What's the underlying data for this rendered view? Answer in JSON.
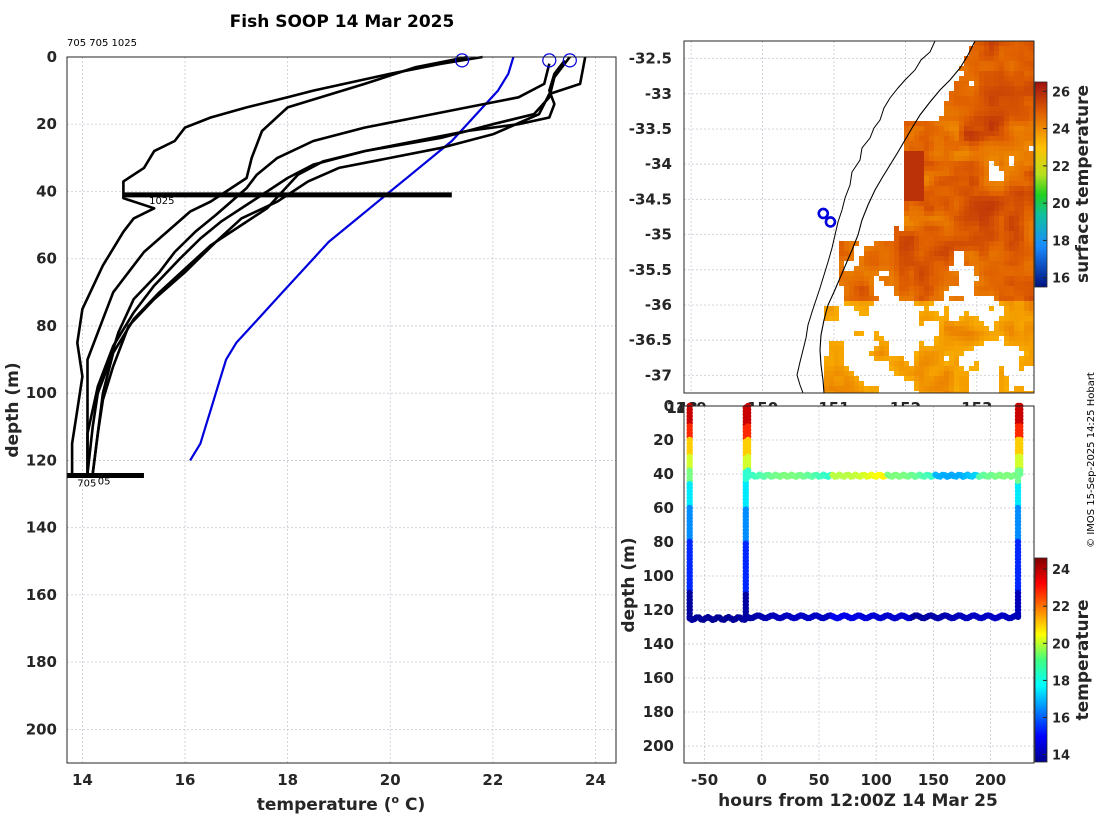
{
  "chart_data": [
    {
      "id": "profiles",
      "type": "line",
      "title": "Fish SOOP 14 Mar 2025",
      "annotation": "705 705 1025",
      "xlabel": "temperature (° C)",
      "xlabel_main": "temperature (",
      "xlabel_sup": "o",
      "xlabel_end": " C)",
      "ylabel": "depth (m)",
      "xlim": [
        13.7,
        24.4
      ],
      "ylim": [
        210,
        0
      ],
      "xticks": [
        14,
        16,
        18,
        20,
        22,
        24
      ],
      "yticks": [
        0,
        20,
        40,
        60,
        80,
        100,
        120,
        140,
        160,
        180,
        200
      ],
      "depth_labels": [
        {
          "text": "1025",
          "temp": 15.3,
          "depth": 42.5
        },
        {
          "text": "705",
          "temp": 13.9,
          "depth": 126.5
        },
        {
          "text": "05",
          "temp": 14.3,
          "depth": 126
        }
      ],
      "series": [
        {
          "name": "climatology",
          "color": "#0000dd",
          "points": [
            [
              22.4,
              0
            ],
            [
              22.3,
              5
            ],
            [
              22.1,
              10
            ],
            [
              21.8,
              15
            ],
            [
              21.5,
              20
            ],
            [
              21.2,
              25
            ],
            [
              20.8,
              30
            ],
            [
              20.4,
              35
            ],
            [
              20.0,
              40
            ],
            [
              19.6,
              45
            ],
            [
              19.2,
              50
            ],
            [
              18.8,
              55
            ],
            [
              18.5,
              60
            ],
            [
              18.2,
              65
            ],
            [
              17.9,
              70
            ],
            [
              17.6,
              75
            ],
            [
              17.3,
              80
            ],
            [
              17.0,
              85
            ],
            [
              16.8,
              90
            ],
            [
              16.7,
              95
            ],
            [
              16.6,
              100
            ],
            [
              16.5,
              105
            ],
            [
              16.4,
              110
            ],
            [
              16.3,
              115
            ],
            [
              16.1,
              120
            ]
          ]
        },
        {
          "name": "profile-1",
          "color": "#000000",
          "points": [
            [
              21.8,
              0
            ],
            [
              21.0,
              2
            ],
            [
              20.0,
              5
            ],
            [
              18.5,
              10
            ],
            [
              18.0,
              12
            ],
            [
              17.2,
              15
            ],
            [
              16.5,
              18
            ],
            [
              16.0,
              21
            ],
            [
              15.8,
              25
            ],
            [
              15.4,
              28
            ],
            [
              15.2,
              33
            ],
            [
              14.8,
              37
            ],
            [
              14.8,
              42
            ],
            [
              15.4,
              45
            ],
            [
              15.0,
              48
            ],
            [
              14.8,
              52
            ],
            [
              14.6,
              57
            ],
            [
              14.4,
              62
            ],
            [
              14.0,
              75
            ],
            [
              13.9,
              85
            ],
            [
              14.0,
              95
            ],
            [
              13.9,
              105
            ],
            [
              13.8,
              115
            ],
            [
              13.8,
              124
            ]
          ]
        },
        {
          "name": "profile-2",
          "color": "#000000",
          "points": [
            [
              21.5,
              0
            ],
            [
              20.5,
              3
            ],
            [
              19.5,
              8
            ],
            [
              18.0,
              15
            ],
            [
              17.5,
              22
            ],
            [
              17.3,
              30
            ],
            [
              17.2,
              36
            ],
            [
              16.8,
              40
            ],
            [
              16.5,
              43
            ],
            [
              16.1,
              46
            ],
            [
              15.8,
              50
            ],
            [
              15.5,
              54
            ],
            [
              15.2,
              58
            ],
            [
              15.0,
              62
            ],
            [
              14.6,
              70
            ],
            [
              14.4,
              78
            ],
            [
              14.1,
              90
            ],
            [
              14.1,
              100
            ],
            [
              14.1,
              110
            ],
            [
              14.1,
              124
            ]
          ]
        },
        {
          "name": "profile-3",
          "color": "#000000",
          "points": [
            [
              23.1,
              2
            ],
            [
              23.0,
              8
            ],
            [
              22.5,
              12
            ],
            [
              21.5,
              15
            ],
            [
              20.5,
              18
            ],
            [
              19.5,
              21
            ],
            [
              18.5,
              25
            ],
            [
              17.8,
              30
            ],
            [
              17.4,
              35
            ],
            [
              17.2,
              39
            ],
            [
              16.9,
              43
            ],
            [
              16.6,
              47
            ],
            [
              16.2,
              52
            ],
            [
              15.8,
              58
            ],
            [
              15.5,
              64
            ],
            [
              15.0,
              72
            ],
            [
              14.7,
              82
            ],
            [
              14.5,
              92
            ],
            [
              14.3,
              100
            ],
            [
              14.2,
              110
            ],
            [
              14.1,
              124
            ]
          ]
        },
        {
          "name": "profile-4",
          "color": "#000000",
          "points": [
            [
              23.5,
              0
            ],
            [
              23.2,
              6
            ],
            [
              23.1,
              12
            ],
            [
              22.8,
              17
            ],
            [
              22.0,
              20
            ],
            [
              21.0,
              24
            ],
            [
              19.5,
              28
            ],
            [
              18.5,
              32
            ],
            [
              18.0,
              36
            ],
            [
              17.6,
              40
            ],
            [
              17.2,
              44
            ],
            [
              16.7,
              49
            ],
            [
              16.3,
              54
            ],
            [
              15.9,
              60
            ],
            [
              15.4,
              68
            ],
            [
              15.0,
              76
            ],
            [
              14.6,
              86
            ],
            [
              14.3,
              98
            ],
            [
              14.1,
              112
            ],
            [
              14.1,
              124
            ]
          ]
        },
        {
          "name": "profile-5",
          "color": "#000000",
          "points": [
            [
              23.8,
              0
            ],
            [
              23.7,
              8
            ],
            [
              23.3,
              10
            ],
            [
              23.1,
              11
            ],
            [
              22.9,
              17
            ],
            [
              22.0,
              23
            ],
            [
              21.0,
              27
            ],
            [
              20.0,
              30
            ],
            [
              19.0,
              33
            ],
            [
              18.4,
              37
            ],
            [
              18.1,
              40
            ],
            [
              17.8,
              43
            ],
            [
              17.1,
              48
            ],
            [
              16.6,
              55
            ],
            [
              16.0,
              64
            ],
            [
              15.4,
              72
            ],
            [
              14.9,
              80
            ],
            [
              14.6,
              92
            ],
            [
              14.4,
              102
            ],
            [
              14.3,
              112
            ],
            [
              14.2,
              124
            ]
          ]
        },
        {
          "name": "profile-6",
          "color": "#000000",
          "points": [
            [
              23.4,
              1
            ],
            [
              23.2,
              5
            ],
            [
              23.1,
              10
            ],
            [
              23.2,
              14
            ],
            [
              23.1,
              18
            ],
            [
              22.5,
              20
            ],
            [
              21.5,
              22
            ],
            [
              20.5,
              25
            ],
            [
              19.5,
              28
            ],
            [
              18.7,
              31
            ],
            [
              18.2,
              35
            ],
            [
              17.9,
              40
            ],
            [
              17.6,
              45
            ],
            [
              17.1,
              50
            ],
            [
              16.5,
              56
            ],
            [
              16.0,
              63
            ],
            [
              15.5,
              70
            ],
            [
              15.0,
              78
            ],
            [
              14.6,
              88
            ],
            [
              14.4,
              100
            ],
            [
              14.3,
              112
            ],
            [
              14.2,
              124
            ]
          ]
        }
      ],
      "horizontal_segments": [
        {
          "depth": 41,
          "from": 14.8,
          "to": 21.2
        },
        {
          "depth": 124.5,
          "from": 13.7,
          "to": 15.2
        }
      ],
      "surface_markers": [
        21.4,
        23.1,
        23.5
      ]
    },
    {
      "id": "sst-map",
      "type": "heatmap",
      "colorbar_label": "surface temperature",
      "xlim": [
        148.9,
        153.8
      ],
      "ylim": [
        -37.25,
        -32.25
      ],
      "xticks": [
        149,
        150,
        151,
        152,
        153
      ],
      "xtick_labels": [
        "149",
        "150",
        "151",
        "152",
        "153"
      ],
      "xtick_labels_left": "148",
      "yticks": [
        -32.5,
        -33,
        -33.5,
        -34,
        -34.5,
        -35,
        -35.5,
        -36,
        -36.5,
        -37
      ],
      "ytick_labels": [
        "-32.5",
        "-33",
        "-33.5",
        "-34",
        "-34.5",
        "-35",
        "-35.5",
        "-36",
        "-36.5",
        "-37"
      ],
      "clim": [
        15.5,
        26.5
      ],
      "cticks": [
        16,
        18,
        20,
        22,
        24,
        26
      ],
      "cticks_labels": [
        "16",
        "18",
        "20",
        "22",
        "24",
        "26"
      ],
      "markers": [
        [
          150.85,
          -34.7
        ],
        [
          150.95,
          -34.82
        ]
      ]
    },
    {
      "id": "time-depth",
      "type": "scatter",
      "xlabel": "hours from 12:00Z 14 Mar 25",
      "ylabel": "depth (m)",
      "colorbar_label": "temperature",
      "xlim": [
        -68,
        238
      ],
      "ylim": [
        210,
        0
      ],
      "xticks": [
        -50,
        0,
        50,
        100,
        150,
        200
      ],
      "xtick_labels": [
        "-50",
        "0",
        "50",
        "100",
        "150",
        "200"
      ],
      "yticks": [
        0,
        20,
        40,
        60,
        80,
        100,
        120,
        140,
        160,
        180,
        200
      ],
      "ytick_labels": [
        "0",
        "20",
        "40",
        "60",
        "80",
        "100",
        "120",
        "140",
        "160",
        "180",
        "200"
      ],
      "clim": [
        13.6,
        24.6
      ],
      "cticks": [
        14,
        16,
        18,
        20,
        22,
        24
      ],
      "cticks_labels": [
        "14",
        "16",
        "18",
        "20",
        "22",
        "24"
      ]
    }
  ],
  "credit": "© IMOS 15-Sep-2025 14:25 Hobart"
}
